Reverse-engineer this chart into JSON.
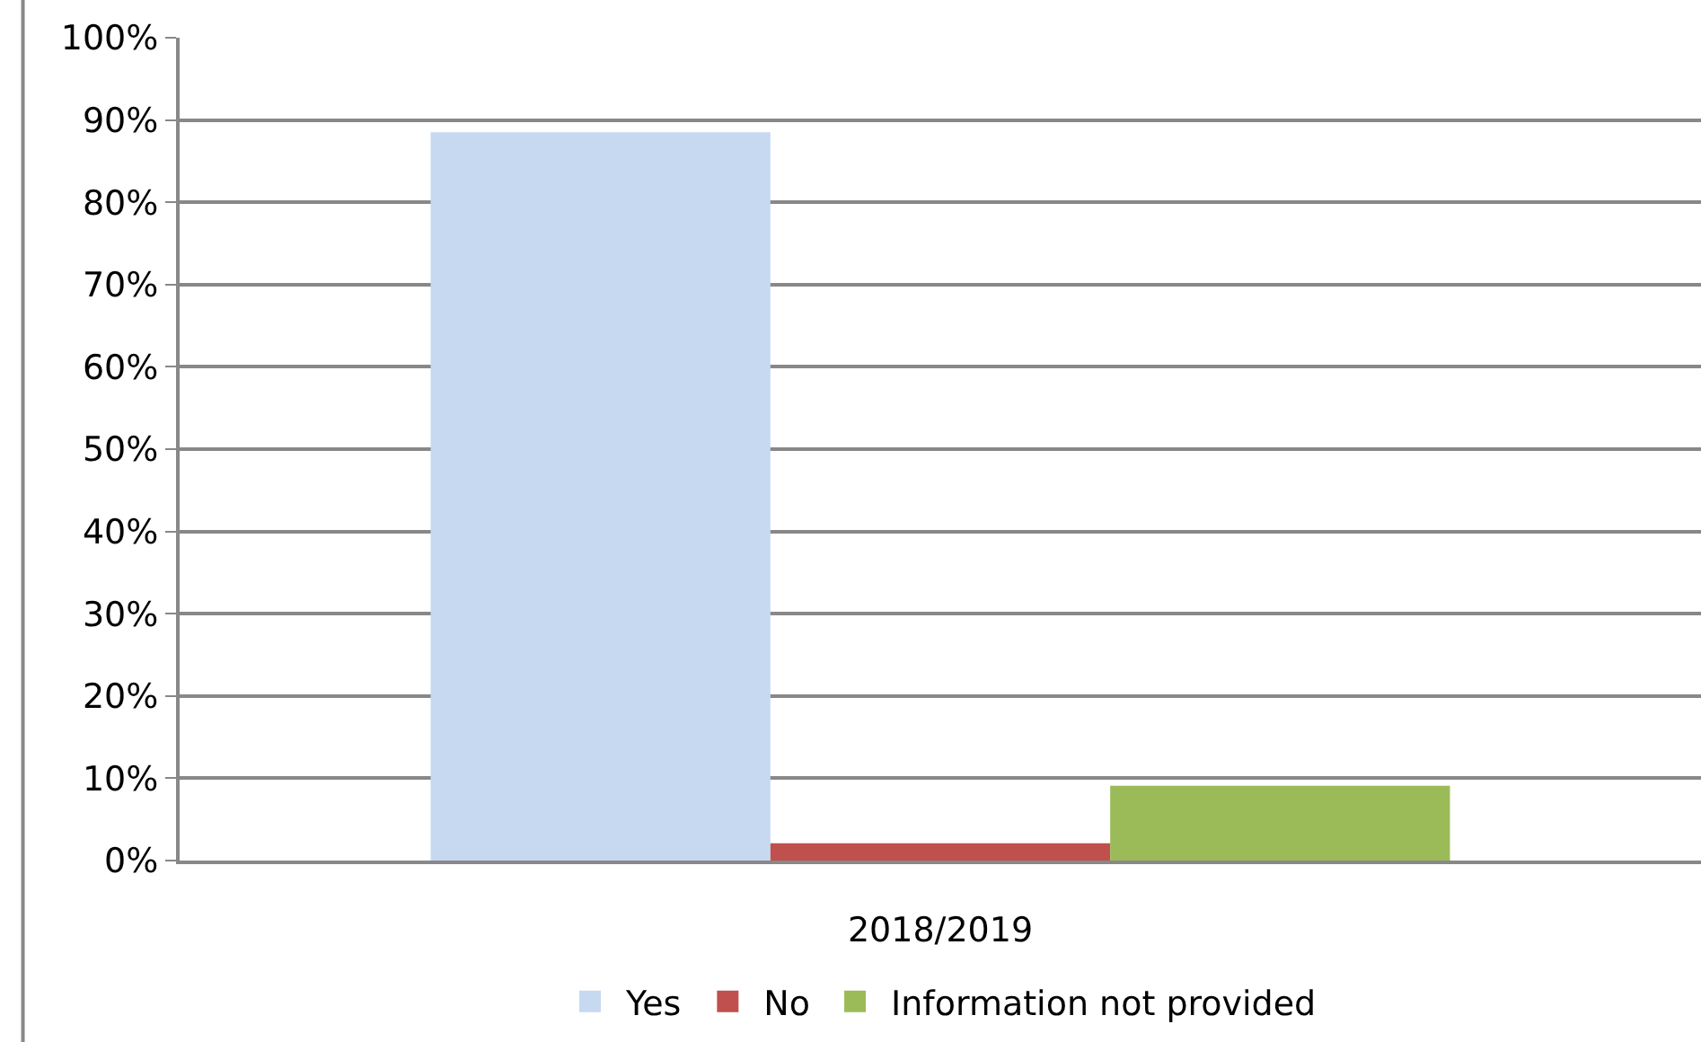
{
  "chart_data": {
    "type": "bar",
    "categories": [
      "2018/2019"
    ],
    "series": [
      {
        "name": "Yes",
        "color": "#c6d9f1",
        "values": [
          88.5
        ]
      },
      {
        "name": "No",
        "color": "#c0504d",
        "values": [
          2.1
        ]
      },
      {
        "name": "Information not provided",
        "color": "#9bbb59",
        "values": [
          9.1
        ]
      }
    ],
    "ylim": [
      0,
      100
    ],
    "yticks": [
      {
        "value": 0,
        "label": "0%"
      },
      {
        "value": 10,
        "label": "10%"
      },
      {
        "value": 20,
        "label": "20%"
      },
      {
        "value": 30,
        "label": "30%"
      },
      {
        "value": 40,
        "label": "40%"
      },
      {
        "value": 50,
        "label": "50%"
      },
      {
        "value": 60,
        "label": "60%"
      },
      {
        "value": 70,
        "label": "70%"
      },
      {
        "value": 80,
        "label": "80%"
      },
      {
        "value": 90,
        "label": "90%"
      },
      {
        "value": 100,
        "label": "100%"
      }
    ],
    "grid": "y",
    "legend": "bottom"
  }
}
